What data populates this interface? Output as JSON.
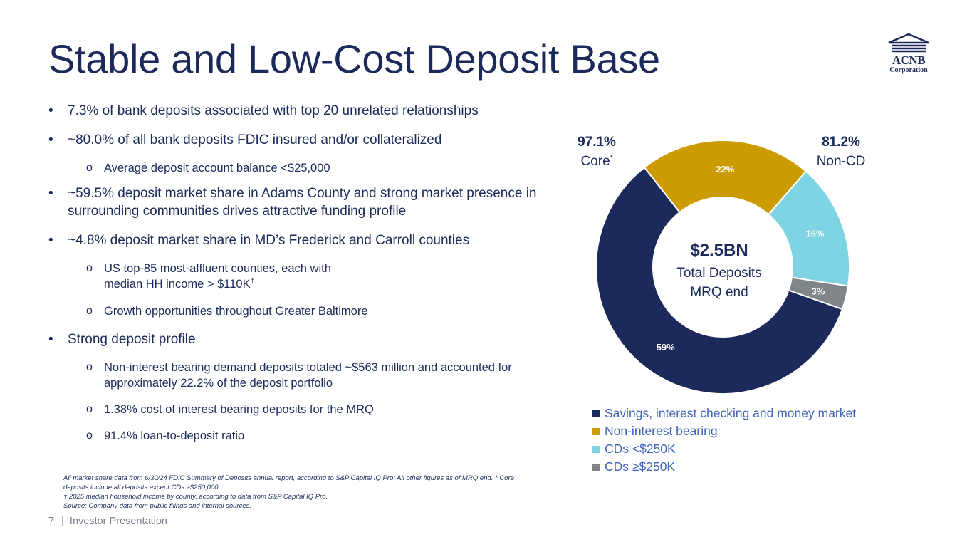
{
  "title": "Stable and Low-Cost Deposit Base",
  "logo": {
    "name": "ACNB",
    "sub": "Corporation"
  },
  "bullets": [
    {
      "text": "7.3% of bank deposits associated with top 20 unrelated relationships"
    },
    {
      "text": "~80.0% of all bank deposits FDIC insured and/or collateralized"
    },
    {
      "text": "Average deposit account balance <$25,000"
    },
    {
      "text": "~59.5% deposit market share in Adams County and strong market presence in surrounding communities drives attractive funding profile"
    },
    {
      "text": "~4.8% deposit market share in MD’s Frederick and Carroll counties"
    },
    {
      "text": "US top-85 most-affluent counties, each with",
      "text2": "median HH income > $110K",
      "sup": "†"
    },
    {
      "text": "Growth opportunities throughout Greater Baltimore"
    },
    {
      "text": "Strong deposit profile"
    },
    {
      "text": "Non-interest bearing demand deposits totaled ~$563 million and accounted for approximately 22.2% of the deposit portfolio"
    },
    {
      "text": "1.38% cost of interest bearing deposits for the MRQ"
    },
    {
      "text": "91.4% loan-to-deposit ratio"
    }
  ],
  "markers": {
    "bullet": "•",
    "sub": "o"
  },
  "footnotes": [
    "All market share data from 6/30/24 FDIC Summary of Deposits annual report, according to S&P Capital IQ Pro; All other figures as of MRQ end. * Core deposits include all deposits except CDs ≥$250,000.",
    "† 2025 median household income by county, according to data from S&P Capital IQ Pro.",
    "Source: Company data from public filings and internal sources."
  ],
  "footer": {
    "page": "7",
    "separator": "|",
    "label": "Investor Presentation"
  },
  "center": {
    "amount": "$2.5BN",
    "line1": "Total Deposits",
    "line2": "MRQ end"
  },
  "callouts": {
    "core": {
      "pct": "97.1%",
      "label": "Core",
      "sup": "*"
    },
    "noncd": {
      "pct": "81.2%",
      "label": "Non-CD"
    }
  },
  "chart_data": {
    "type": "pie",
    "subtype": "donut",
    "categories": [
      "Savings, interest checking and money market",
      "Non-interest bearing",
      "CDs <$250K",
      "CDs ≥$250K"
    ],
    "values": [
      59,
      22,
      16,
      3
    ],
    "data_labels": [
      "59%",
      "22%",
      "16%",
      "3%"
    ],
    "colors": [
      "#1b2a5a",
      "#cc9b00",
      "#7fd4e3",
      "#7f8589"
    ],
    "label_colors": [
      "#ffffff",
      "#ffffff",
      "#ffffff",
      "#ffffff"
    ],
    "legend_position": "bottom",
    "title": ""
  }
}
